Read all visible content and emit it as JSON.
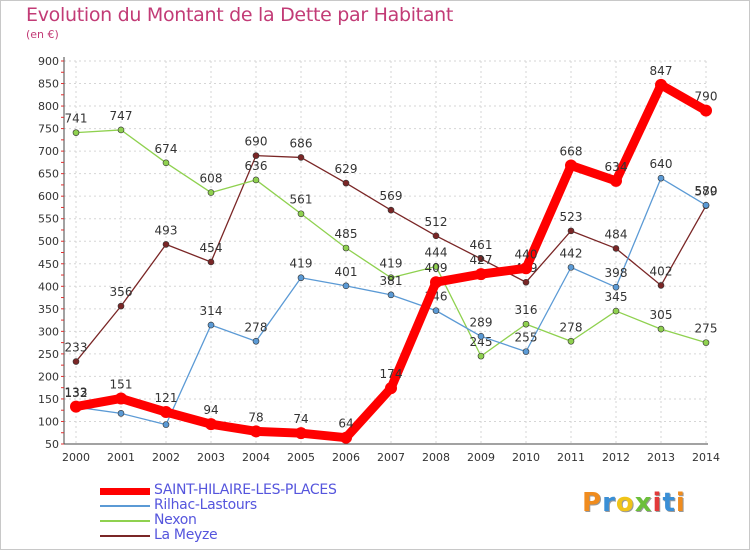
{
  "title": "Evolution du Montant de la Dette par Habitant",
  "subtitle": "(en €)",
  "logo": {
    "text": "Proxiti",
    "colors": [
      "#f08c1e",
      "#3a8fd6",
      "#f0c419",
      "#6cbf3a",
      "#e23a3a",
      "#3a8fd6",
      "#f08c1e"
    ]
  },
  "chart_data": {
    "type": "line",
    "x": [
      "2000",
      "2001",
      "2002",
      "2003",
      "2004",
      "2005",
      "2006",
      "2007",
      "2008",
      "2009",
      "2010",
      "2011",
      "2012",
      "2013",
      "2014"
    ],
    "ylim": [
      50,
      900
    ],
    "yticks": [
      50,
      100,
      150,
      200,
      250,
      300,
      350,
      400,
      450,
      500,
      550,
      600,
      650,
      700,
      750,
      800,
      850,
      900
    ],
    "grid": true,
    "legend_position": "bottom-left",
    "series": [
      {
        "name": "La Meyze",
        "color": "#7a2626",
        "values": [
          233,
          356,
          493,
          454,
          690,
          686,
          629,
          569,
          512,
          461,
          409,
          523,
          484,
          402,
          579
        ],
        "labels": [
          "233",
          "356",
          "493",
          "454",
          "690",
          "686",
          "629",
          "569",
          "512",
          "461",
          "409",
          "523",
          "484",
          "402",
          "579"
        ]
      },
      {
        "name": "Nexon",
        "color": "#8fd14f",
        "values": [
          741,
          747,
          674,
          608,
          636,
          561,
          485,
          419,
          444,
          245,
          316,
          278,
          345,
          305,
          275
        ],
        "labels": [
          "741",
          "747",
          "674",
          "608",
          "636",
          "561",
          "485",
          "419",
          "444",
          "245",
          "316",
          "278",
          "345",
          "305",
          "275"
        ]
      },
      {
        "name": "Rilhac-Lastours",
        "color": "#5b9ad5",
        "values": [
          132,
          118,
          93,
          314,
          278,
          419,
          401,
          381,
          346,
          289,
          255,
          442,
          398,
          640,
          580
        ],
        "labels": [
          "132",
          "",
          "",
          "314",
          "278",
          "419",
          "401",
          "381",
          "346",
          "289",
          "255",
          "442",
          "398",
          "640",
          "580"
        ]
      },
      {
        "name": "SAINT-HILAIRE-LES-PLACES",
        "color": "#ff0000",
        "values": [
          133,
          151,
          121,
          94,
          78,
          74,
          64,
          174,
          409,
          427,
          440,
          668,
          634,
          847,
          790
        ],
        "labels": [
          "133",
          "151",
          "121",
          "94",
          "78",
          "74",
          "64",
          "174",
          "409",
          "427",
          "440",
          "668",
          "634",
          "847",
          "790"
        ]
      }
    ],
    "legend_order": [
      "SAINT-HILAIRE-LES-PLACES",
      "Rilhac-Lastours",
      "Nexon",
      "La Meyze"
    ]
  }
}
